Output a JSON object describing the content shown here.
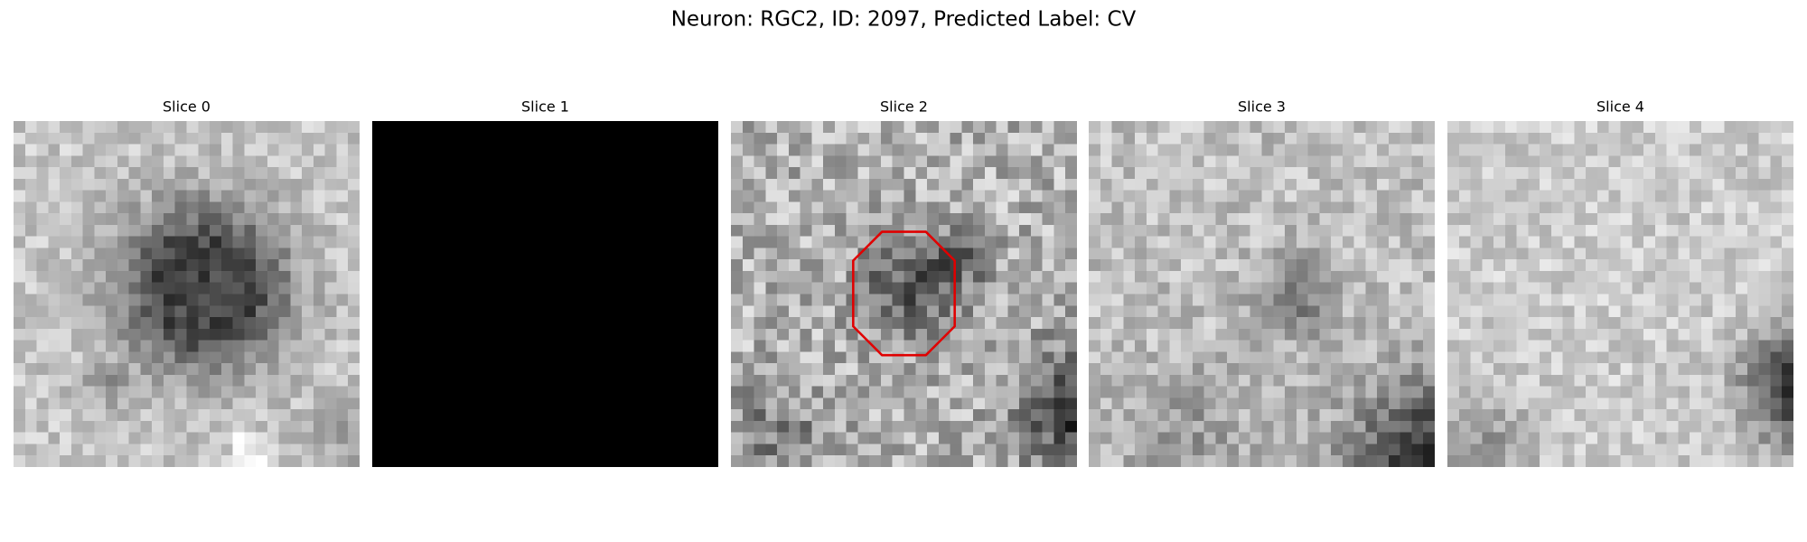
{
  "title": "Neuron: RGC2, ID: 2097, Predicted Label: CV",
  "panels": [
    {
      "title": "Slice 0"
    },
    {
      "title": "Slice 1"
    },
    {
      "title": "Slice 2"
    },
    {
      "title": "Slice 3"
    },
    {
      "title": "Slice 4"
    }
  ]
}
